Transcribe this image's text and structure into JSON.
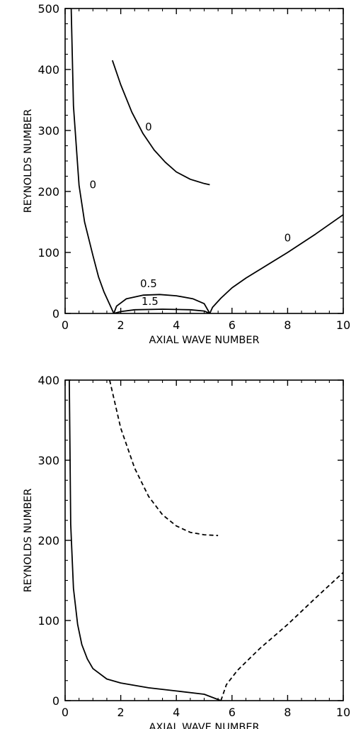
{
  "chart_data": [
    {
      "type": "line",
      "xlabel": "AXIAL WAVE NUMBER",
      "ylabel": "REYNOLDS NUMBER",
      "xlim": [
        0,
        10
      ],
      "ylim": [
        0,
        500
      ],
      "xticks": [
        "0",
        "2",
        "4",
        "6",
        "8",
        "10"
      ],
      "yticks": [
        "0",
        "100",
        "200",
        "300",
        "400",
        "500"
      ],
      "xtick_values": [
        0,
        2,
        4,
        6,
        8,
        10
      ],
      "ytick_values": [
        0,
        100,
        200,
        300,
        400,
        500
      ],
      "grid": false,
      "series": [
        {
          "style": "solid",
          "x": [
            0.22,
            0.3,
            0.5,
            0.7,
            1.0,
            1.2,
            1.4,
            1.6,
            1.75
          ],
          "y": [
            500,
            340,
            210,
            150,
            95,
            60,
            35,
            15,
            0
          ]
        },
        {
          "style": "solid",
          "x": [
            1.75,
            1.85,
            2.2,
            2.8,
            3.4,
            4.0,
            4.6,
            5.0,
            5.2
          ],
          "y": [
            0,
            12,
            24,
            30,
            31,
            29,
            24,
            16,
            0
          ]
        },
        {
          "style": "solid",
          "x": [
            1.75,
            2.0,
            2.5,
            3.5,
            4.5,
            5.0,
            5.2
          ],
          "y": [
            0,
            3,
            6,
            7,
            6,
            4,
            0
          ]
        },
        {
          "style": "solid",
          "x": [
            1.7,
            2.0,
            2.4,
            2.8,
            3.2,
            3.6,
            4.0,
            4.5,
            5.0,
            5.2
          ],
          "y": [
            415,
            375,
            330,
            295,
            268,
            248,
            232,
            220,
            213,
            211
          ]
        },
        {
          "style": "solid",
          "x": [
            5.2,
            5.3,
            5.6,
            6.0,
            6.5,
            7.0,
            8.0,
            9.0,
            10.0
          ],
          "y": [
            0,
            10,
            25,
            42,
            58,
            72,
            100,
            130,
            162
          ]
        }
      ],
      "annotations": [
        {
          "text": "0",
          "x": 3.0,
          "y": 300
        },
        {
          "text": "0",
          "x": 1.0,
          "y": 205
        },
        {
          "text": "0",
          "x": 8.0,
          "y": 118
        },
        {
          "text": "0.5",
          "x": 3.0,
          "y": 43
        },
        {
          "text": "1.5",
          "x": 3.05,
          "y": 14
        }
      ]
    },
    {
      "type": "line",
      "xlabel": "AXIAL WAVE NUMBER",
      "ylabel": "REYNOLDS NUMBER",
      "xlim": [
        0,
        10
      ],
      "ylim": [
        0,
        400
      ],
      "xticks": [
        "0",
        "2",
        "4",
        "6",
        "8",
        "10"
      ],
      "yticks": [
        "0",
        "100",
        "200",
        "300",
        "400"
      ],
      "xtick_values": [
        0,
        2,
        4,
        6,
        8,
        10
      ],
      "ytick_values": [
        0,
        100,
        200,
        300,
        400
      ],
      "grid": false,
      "series": [
        {
          "style": "solid",
          "x": [
            0.15,
            0.2,
            0.3,
            0.45,
            0.6,
            0.8,
            1.0,
            1.5,
            2.0,
            3.0,
            4.0,
            5.0,
            5.6
          ],
          "y": [
            400,
            220,
            140,
            95,
            70,
            52,
            40,
            27,
            22,
            16,
            12,
            8,
            0
          ]
        },
        {
          "style": "dashed",
          "x": [
            1.6,
            2.0,
            2.5,
            3.0,
            3.5,
            4.0,
            4.5,
            5.0,
            5.5
          ],
          "y": [
            400,
            340,
            290,
            255,
            232,
            218,
            210,
            207,
            206
          ]
        },
        {
          "style": "dashed",
          "x": [
            5.6,
            5.8,
            6.2,
            7.0,
            8.0,
            9.0,
            10.0
          ],
          "y": [
            0,
            20,
            38,
            65,
            95,
            128,
            160
          ]
        }
      ],
      "annotations": []
    }
  ]
}
